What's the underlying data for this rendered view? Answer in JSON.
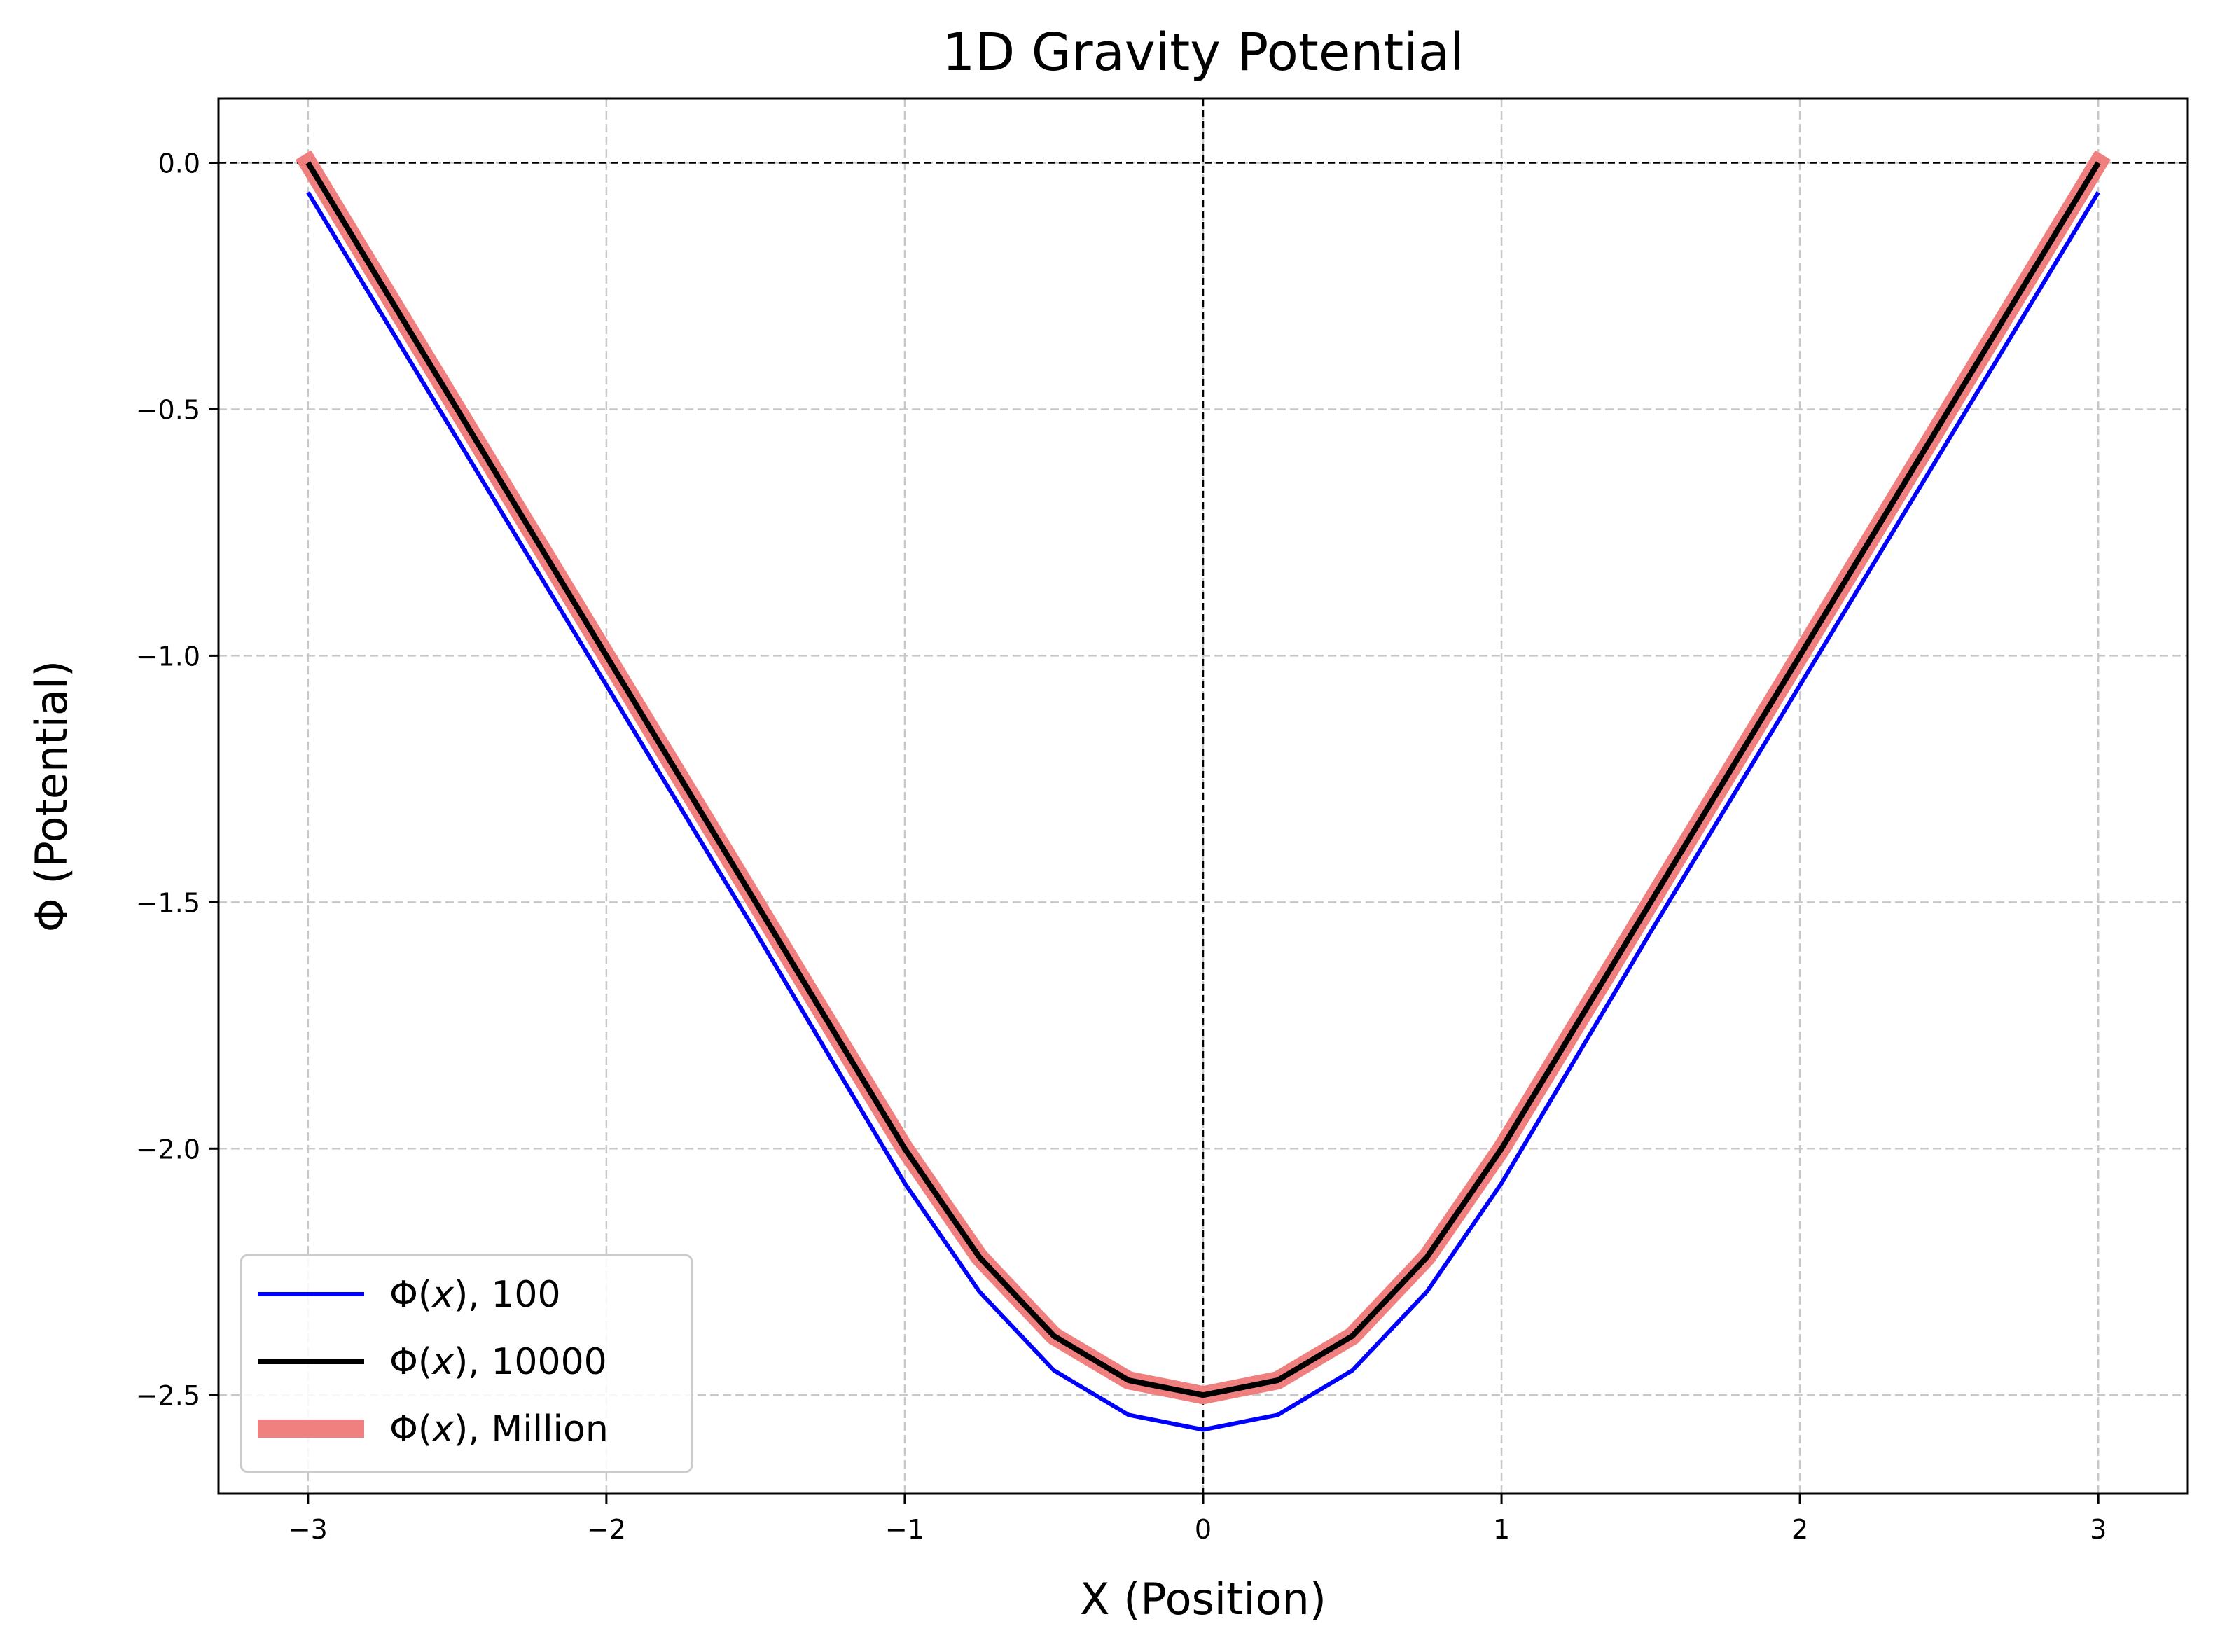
{
  "chart_data": {
    "type": "line",
    "title": "1D Gravity Potential",
    "xlabel": "X (Position)",
    "ylabel": "Φ (Potential)",
    "xlim": [
      -3.3,
      3.3
    ],
    "ylim": [
      -2.7,
      0.13
    ],
    "xticks": [
      -3,
      -2,
      -1,
      0,
      1,
      2,
      3
    ],
    "xtick_labels": [
      "−3",
      "−2",
      "−1",
      "0",
      "1",
      "2",
      "3"
    ],
    "yticks": [
      0.0,
      -0.5,
      -1.0,
      -1.5,
      -2.0,
      -2.5
    ],
    "ytick_labels": [
      "0.0",
      "−0.5",
      "−1.0",
      "−1.5",
      "−2.0",
      "−2.5"
    ],
    "grid": true,
    "legend_position": "lower-left",
    "reference_lines": {
      "y": 0,
      "x": 0,
      "style": "dashed",
      "color": "#000000"
    },
    "series": [
      {
        "name": "Φ(x), 100",
        "legend_label": {
          "prefix": "Φ(",
          "var": "x",
          "suffix": "), 100"
        },
        "color": "#0000ff",
        "x": [
          -3.0,
          -2.5,
          -2.0,
          -1.5,
          -1.0,
          -0.75,
          -0.5,
          -0.25,
          0.0,
          0.25,
          0.5,
          0.75,
          1.0,
          1.5,
          2.0,
          2.5,
          3.0
        ],
        "y": [
          -0.06,
          -0.56,
          -1.06,
          -1.56,
          -2.07,
          -2.29,
          -2.45,
          -2.54,
          -2.57,
          -2.54,
          -2.45,
          -2.29,
          -2.07,
          -1.56,
          -1.06,
          -0.56,
          -0.06
        ]
      },
      {
        "name": "Φ(x), 10000",
        "legend_label": {
          "prefix": "Φ(",
          "var": "x",
          "suffix": "), 10000"
        },
        "color": "#000000",
        "x": [
          -3.0,
          -2.5,
          -2.0,
          -1.5,
          -1.0,
          -0.75,
          -0.5,
          -0.25,
          0.0,
          0.25,
          0.5,
          0.75,
          1.0,
          1.5,
          2.0,
          2.5,
          3.0
        ],
        "y": [
          0.0,
          -0.5,
          -1.0,
          -1.5,
          -2.0,
          -2.22,
          -2.38,
          -2.47,
          -2.5,
          -2.47,
          -2.38,
          -2.22,
          -2.0,
          -1.5,
          -1.0,
          -0.5,
          0.0
        ]
      },
      {
        "name": "Φ(x), Million",
        "legend_label": {
          "prefix": "Φ(",
          "var": "x",
          "suffix": "), Million"
        },
        "color": "#f08080",
        "x": [
          -3.0,
          -2.5,
          -2.0,
          -1.5,
          -1.0,
          -0.75,
          -0.5,
          -0.25,
          0.0,
          0.25,
          0.5,
          0.75,
          1.0,
          1.5,
          2.0,
          2.5,
          3.0
        ],
        "y": [
          0.0,
          -0.5,
          -1.0,
          -1.5,
          -2.0,
          -2.22,
          -2.38,
          -2.47,
          -2.5,
          -2.47,
          -2.38,
          -2.22,
          -2.0,
          -1.5,
          -1.0,
          -0.5,
          0.0
        ]
      }
    ]
  }
}
